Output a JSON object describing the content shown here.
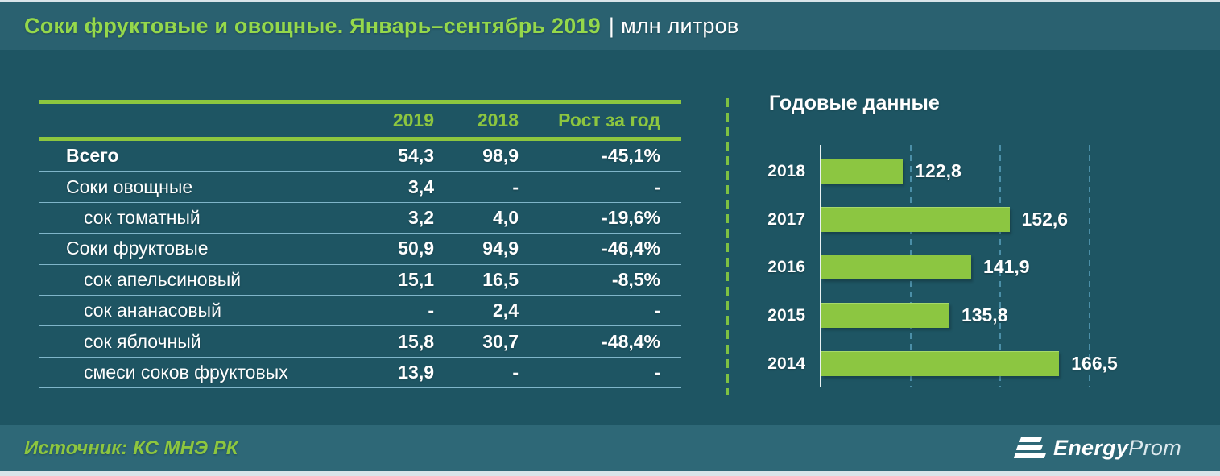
{
  "header": {
    "title_main": "Соки фруктовые и овощные. Январь–сентябрь 2019",
    "title_separator": "|",
    "title_unit": "млн литров"
  },
  "table": {
    "columns": [
      "2019",
      "2018",
      "Рост за год"
    ],
    "rows": [
      {
        "label": "Всего",
        "v2019": "54,3",
        "v2018": "98,9",
        "growth": "-45,1%",
        "bold": true,
        "indent": 0
      },
      {
        "label": "Соки овощные",
        "v2019": "3,4",
        "v2018": "-",
        "growth": "-",
        "bold": false,
        "indent": 0
      },
      {
        "label": "сок томатный",
        "v2019": "3,2",
        "v2018": "4,0",
        "growth": "-19,6%",
        "bold": false,
        "indent": 1
      },
      {
        "label": "Соки фруктовые",
        "v2019": "50,9",
        "v2018": "94,9",
        "growth": "-46,4%",
        "bold": false,
        "indent": 0
      },
      {
        "label": "сок апельсиновый",
        "v2019": "15,1",
        "v2018": "16,5",
        "growth": "-8,5%",
        "bold": false,
        "indent": 1
      },
      {
        "label": "сок ананасовый",
        "v2019": "-",
        "v2018": "2,4",
        "growth": "-",
        "bold": false,
        "indent": 1
      },
      {
        "label": "сок яблочный",
        "v2019": "15,8",
        "v2018": "30,7",
        "growth": "-48,4%",
        "bold": false,
        "indent": 1
      },
      {
        "label": "смеси соков фруктовых",
        "v2019": "13,9",
        "v2018": "-",
        "growth": "-",
        "bold": false,
        "indent": 1
      }
    ]
  },
  "chart_data": {
    "type": "bar",
    "orientation": "horizontal",
    "title": "Годовые данные",
    "categories": [
      "2018",
      "2017",
      "2016",
      "2015",
      "2014"
    ],
    "values": [
      122.8,
      152.6,
      141.9,
      135.8,
      166.5
    ],
    "value_labels": [
      "122,8",
      "152,6",
      "141,9",
      "135,8",
      "166,5"
    ],
    "xlabel": "",
    "ylabel": "",
    "xlim": [
      100,
      175
    ],
    "gridlines": [
      125,
      150,
      175
    ],
    "grid": true,
    "legend": false,
    "bar_color": "#8CC641"
  },
  "footer": {
    "source": "Источник: КС МНЭ РК",
    "logo_bold": "Energy",
    "logo_light": "Prom"
  },
  "colors": {
    "background": "#1E5563",
    "header_band": "#2A6170",
    "footer_band": "#2E6877",
    "accent_green": "#8DC63F",
    "title_green": "#95D84B",
    "bar_green": "#8CC641",
    "gridline_blue": "#4B8FA8",
    "row_divider": "#7FB5C9",
    "text_white": "#FFFFFF"
  }
}
